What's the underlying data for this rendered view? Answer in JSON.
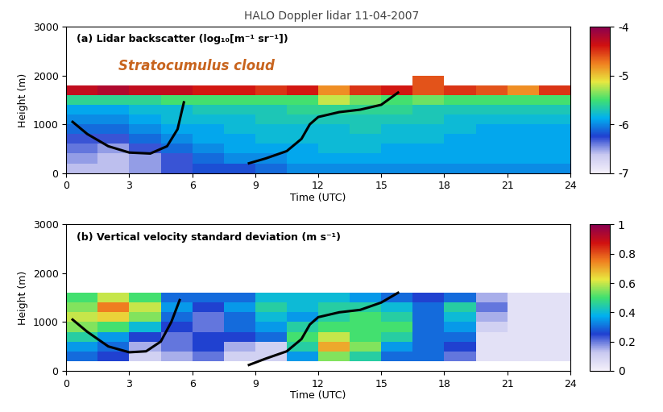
{
  "title": "HALO Doppler lidar 11-04-2007",
  "chart_data": [
    {
      "type": "heatmap",
      "title": "(a) Lidar backscatter (log₁₀[m⁻¹ sr⁻¹])",
      "x_label": "Time (UTC)",
      "y_label": "Height (m)",
      "xlim": [
        0,
        24
      ],
      "xticks": [
        0,
        3,
        6,
        9,
        12,
        15,
        18,
        21,
        24
      ],
      "ylim": [
        0,
        3000
      ],
      "yticks": [
        0,
        1000,
        2000,
        3000
      ],
      "x_edges": [
        0,
        1.5,
        3,
        4.5,
        6,
        7.5,
        9,
        10.5,
        12,
        13.5,
        15,
        16.5,
        18,
        19.5,
        21,
        22.5,
        24
      ],
      "y_edges": [
        0,
        200,
        400,
        600,
        800,
        1000,
        1200,
        1400,
        1600,
        1800,
        2000
      ],
      "cells": [
        [
          -6.6,
          -6.6,
          -6.5,
          -6.3,
          -6.2,
          -6.2,
          -6.1,
          -6.0,
          -6.0,
          -6.0,
          -6.0,
          -6.0,
          -6.0,
          -6.0,
          -6.0,
          -6.0
        ],
        [
          -6.5,
          -6.6,
          -6.5,
          -6.3,
          -6.1,
          -6.0,
          -6.0,
          -5.9,
          -5.9,
          -5.9,
          -5.9,
          -5.9,
          -5.9,
          -5.9,
          -5.9,
          -5.9
        ],
        [
          -6.4,
          -6.5,
          -6.3,
          -6.1,
          -6.0,
          -5.9,
          -5.9,
          -5.9,
          -5.8,
          -5.8,
          -5.9,
          -5.9,
          -5.9,
          -5.9,
          -5.9,
          -5.9
        ],
        [
          -6.3,
          -6.3,
          -6.1,
          -6.0,
          -5.9,
          -5.9,
          -5.8,
          -5.8,
          -5.8,
          -5.8,
          -5.8,
          -5.8,
          -5.9,
          -5.9,
          -5.9,
          -5.9
        ],
        [
          -6.1,
          -6.1,
          -6.0,
          -5.9,
          -5.9,
          -5.8,
          -5.8,
          -5.8,
          -5.8,
          -5.7,
          -5.8,
          -5.8,
          -5.8,
          -5.9,
          -5.9,
          -5.9
        ],
        [
          -6.0,
          -6.0,
          -5.9,
          -5.8,
          -5.8,
          -5.8,
          -5.7,
          -5.7,
          -5.7,
          -5.7,
          -5.7,
          -5.7,
          -5.8,
          -5.8,
          -5.8,
          -5.8
        ],
        [
          -5.9,
          -5.9,
          -5.8,
          -5.8,
          -5.7,
          -5.7,
          -5.7,
          -5.6,
          -5.6,
          -5.6,
          -5.6,
          -5.7,
          -5.7,
          -5.7,
          -5.7,
          -5.7
        ],
        [
          -5.6,
          -5.6,
          -5.6,
          -5.5,
          -5.5,
          -5.5,
          -5.5,
          -5.5,
          -5.2,
          -5.4,
          -5.5,
          -5.4,
          -5.5,
          -5.5,
          -5.5,
          -5.5
        ],
        [
          -4.3,
          -4.2,
          -4.3,
          -4.3,
          -4.4,
          -4.4,
          -4.5,
          -4.4,
          -4.8,
          -4.5,
          -4.4,
          -4.6,
          -4.5,
          -4.6,
          -4.8,
          -4.5
        ],
        [
          null,
          null,
          null,
          null,
          null,
          null,
          null,
          null,
          null,
          null,
          null,
          -4.6,
          null,
          null,
          null,
          null
        ]
      ],
      "colorbar_lim": [
        -7,
        -4
      ],
      "colorbar_ticks": [
        -7,
        -6,
        -5,
        -4
      ],
      "annotation": "Stratocumulus cloud",
      "series": [
        {
          "type": "line",
          "color": "#000000",
          "x": [
            0.3,
            1,
            2,
            3,
            4,
            4.8,
            5.3,
            5.6
          ],
          "y": [
            1050,
            800,
            550,
            420,
            400,
            550,
            900,
            1450
          ]
        },
        {
          "type": "line",
          "color": "#000000",
          "x": [
            8.7,
            9.5,
            10.5,
            11.2,
            11.6,
            12,
            13,
            14,
            15,
            15.8
          ],
          "y": [
            200,
            300,
            450,
            700,
            1000,
            1150,
            1250,
            1300,
            1400,
            1650
          ]
        }
      ]
    },
    {
      "type": "heatmap",
      "title": "(b) Vertical velocity standard deviation (m s⁻¹)",
      "x_label": "Time (UTC)",
      "y_label": "Height (m)",
      "xlim": [
        0,
        24
      ],
      "xticks": [
        0,
        3,
        6,
        9,
        12,
        15,
        18,
        21,
        24
      ],
      "ylim": [
        0,
        3000
      ],
      "yticks": [
        0,
        1000,
        2000,
        3000
      ],
      "x_edges": [
        0,
        1.5,
        3,
        4.5,
        6,
        7.5,
        9,
        10.5,
        12,
        13.5,
        15,
        16.5,
        18,
        19.5,
        21,
        22.5,
        24
      ],
      "y_edges": [
        200,
        400,
        600,
        800,
        1000,
        1200,
        1400,
        1600
      ],
      "cells": [
        [
          0.3,
          0.25,
          0.1,
          0.15,
          0.2,
          0.1,
          0.1,
          0.35,
          0.55,
          0.45,
          0.3,
          0.3,
          0.2,
          0.05,
          0.05,
          0.05
        ],
        [
          0.35,
          0.3,
          0.15,
          0.2,
          0.25,
          0.15,
          0.1,
          0.45,
          0.7,
          0.55,
          0.35,
          0.3,
          0.25,
          0.05,
          0.05,
          0.05
        ],
        [
          0.45,
          0.35,
          0.25,
          0.2,
          0.25,
          0.25,
          0.3,
          0.5,
          0.6,
          0.5,
          0.45,
          0.3,
          0.3,
          0.05,
          0.05,
          0.05
        ],
        [
          0.55,
          0.5,
          0.4,
          0.25,
          0.2,
          0.3,
          0.35,
          0.45,
          0.5,
          0.5,
          0.5,
          0.3,
          0.35,
          0.1,
          0.05,
          0.05
        ],
        [
          0.6,
          0.65,
          0.55,
          0.3,
          0.2,
          0.3,
          0.4,
          0.35,
          0.45,
          0.5,
          0.45,
          0.3,
          0.4,
          0.15,
          0.05,
          0.05
        ],
        [
          0.55,
          0.75,
          0.6,
          0.35,
          0.25,
          0.35,
          0.45,
          0.4,
          0.45,
          0.45,
          0.4,
          0.3,
          0.45,
          0.2,
          0.05,
          0.05
        ],
        [
          0.5,
          0.6,
          0.5,
          0.3,
          0.3,
          0.3,
          0.4,
          0.4,
          0.4,
          0.35,
          0.3,
          0.25,
          0.3,
          0.15,
          0.05,
          0.05
        ]
      ],
      "colorbar_lim": [
        0,
        1
      ],
      "colorbar_ticks": [
        0,
        0.2,
        0.4,
        0.6,
        0.8,
        1
      ],
      "series": [
        {
          "type": "line",
          "color": "#000000",
          "x": [
            0.3,
            1,
            2,
            3,
            3.8,
            4.5,
            5,
            5.4
          ],
          "y": [
            1050,
            800,
            500,
            380,
            400,
            600,
            1000,
            1450
          ]
        },
        {
          "type": "line",
          "color": "#000000",
          "x": [
            8.7,
            9.5,
            10.5,
            11.2,
            11.6,
            12,
            13,
            14,
            15,
            15.8
          ],
          "y": [
            120,
            250,
            400,
            650,
            950,
            1100,
            1200,
            1250,
            1400,
            1600
          ]
        }
      ]
    }
  ]
}
